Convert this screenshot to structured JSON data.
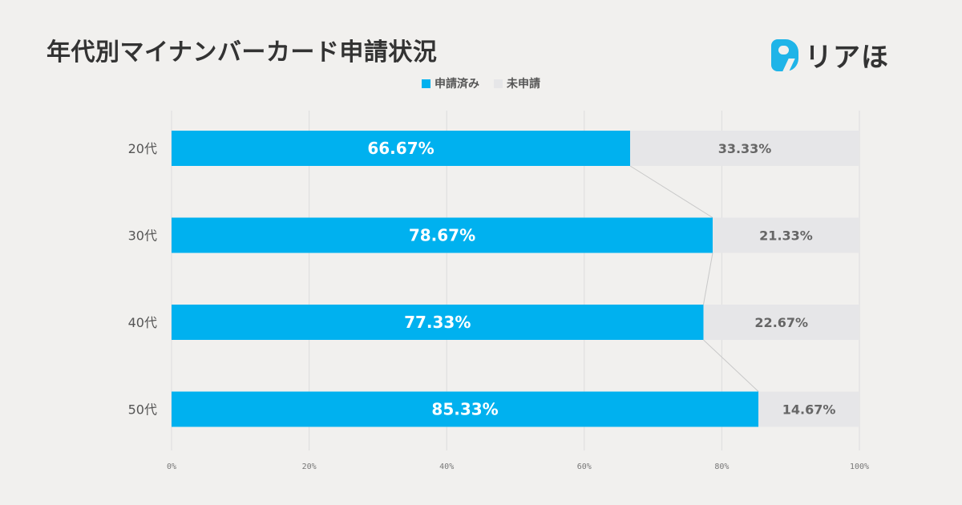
{
  "title": "年代別マイナンバーカード申請状況",
  "logo": {
    "text": "リアほ"
  },
  "colors": {
    "applied": "#00b1ef",
    "not_applied": "#e6e6e8",
    "connector": "#c8c8c8",
    "axis": "#dddddd"
  },
  "chart_data": {
    "type": "bar",
    "orientation": "horizontal",
    "stacked": true,
    "categories": [
      "20代",
      "30代",
      "40代",
      "50代"
    ],
    "series": [
      {
        "name": "申請済み",
        "values": [
          66.67,
          78.67,
          77.33,
          85.33
        ],
        "labels": [
          "66.67%",
          "78.67%",
          "77.33%",
          "85.33%"
        ]
      },
      {
        "name": "未申請",
        "values": [
          33.33,
          21.33,
          22.67,
          14.67
        ],
        "labels": [
          "33.33%",
          "21.33%",
          "22.67%",
          "14.67%"
        ]
      }
    ],
    "xlim": [
      0,
      100
    ],
    "xticks": [
      "0%",
      "20%",
      "40%",
      "60%",
      "80%",
      "100%"
    ],
    "grid": true,
    "legend": "top-center",
    "series_lines": true
  }
}
